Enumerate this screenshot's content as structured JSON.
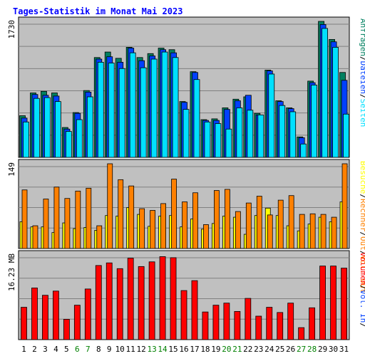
{
  "title": "Tages-Statistik im Monat Mai 2023",
  "colors": {
    "panel_bg": "#c0c0c0",
    "gridline": "#808080",
    "anfragen": "#008060",
    "dateien": "#0040ff",
    "seiten": "#00e0ff",
    "besuche": "#ffff00",
    "rechner": "#ff8000",
    "volumen": "#ff0000",
    "weekday": "#000000",
    "weekend": "#008000",
    "title": "#0000ff"
  },
  "chart_data": [
    {
      "type": "bar",
      "name": "top",
      "ymax_label": "1730",
      "ymax": 1730,
      "legend": [
        {
          "text": "Anfragen",
          "color": "#008060"
        },
        {
          "text": "/",
          "color": "#000000"
        },
        {
          "text": "Dateien",
          "color": "#0040ff"
        },
        {
          "text": "/",
          "color": "#000000"
        },
        {
          "text": "Seiten",
          "color": "#00e0ff"
        }
      ],
      "categories": [
        "1",
        "2",
        "3",
        "4",
        "5",
        "6",
        "7",
        "8",
        "9",
        "10",
        "11",
        "12",
        "13",
        "14",
        "15",
        "16",
        "17",
        "18",
        "19",
        "20",
        "21",
        "22",
        "23",
        "24",
        "25",
        "26",
        "27",
        "28",
        "29",
        "30",
        "31"
      ],
      "series": [
        {
          "name": "Anfragen",
          "values": [
            530,
            820,
            840,
            820,
            380,
            570,
            850,
            1270,
            1340,
            1260,
            1400,
            1270,
            1320,
            1390,
            1370,
            710,
            1090,
            480,
            490,
            630,
            740,
            770,
            560,
            1110,
            720,
            630,
            260,
            970,
            1730,
            1500,
            1080
          ]
        },
        {
          "name": "Dateien",
          "values": [
            500,
            800,
            790,
            780,
            360,
            560,
            830,
            1250,
            1280,
            1210,
            1390,
            1230,
            1290,
            1370,
            1330,
            700,
            1080,
            470,
            470,
            610,
            720,
            790,
            540,
            1100,
            710,
            620,
            250,
            950,
            1690,
            1470,
            980
          ]
        },
        {
          "name": "Seiten",
          "values": [
            450,
            750,
            760,
            710,
            330,
            480,
            770,
            1210,
            1200,
            1130,
            1330,
            1140,
            1250,
            1340,
            1270,
            610,
            990,
            450,
            430,
            360,
            630,
            600,
            540,
            1060,
            660,
            580,
            170,
            920,
            1640,
            1400,
            550
          ]
        }
      ]
    },
    {
      "type": "bar",
      "name": "middle",
      "ymax_label": "149",
      "ymax": 149,
      "legend": [
        {
          "text": "Besuche",
          "color": "#ffff00"
        },
        {
          "text": "/",
          "color": "#000000"
        },
        {
          "text": "Rechner",
          "color": "#ff8000"
        },
        {
          "text": "/",
          "color": "#000000"
        },
        {
          "text": "Out",
          "color": "#ff8000"
        },
        {
          "text": "/",
          "color": "#000000"
        },
        {
          "text": "Vol.",
          "color": "#ff8000"
        },
        {
          "text": "Out",
          "color": "#ff8000"
        }
      ],
      "categories": [
        "1",
        "2",
        "3",
        "4",
        "5",
        "6",
        "7",
        "8",
        "9",
        "10",
        "11",
        "12",
        "13",
        "14",
        "15",
        "16",
        "17",
        "18",
        "19",
        "20",
        "21",
        "22",
        "23",
        "24",
        "25",
        "26",
        "27",
        "28",
        "29",
        "30",
        "31"
      ],
      "series": [
        {
          "name": "Besuche",
          "values": [
            47,
            38,
            38,
            28,
            45,
            35,
            37,
            32,
            58,
            57,
            72,
            60,
            39,
            57,
            58,
            38,
            52,
            34,
            44,
            57,
            55,
            25,
            58,
            71,
            58,
            40,
            31,
            43,
            55,
            47,
            82
          ]
        },
        {
          "name": "Rechner",
          "values": [
            103,
            40,
            87,
            108,
            88,
            101,
            106,
            40,
            149,
            121,
            110,
            70,
            67,
            79,
            122,
            82,
            98,
            42,
            102,
            104,
            65,
            80,
            92,
            59,
            85,
            93,
            60,
            61,
            60,
            55,
            149
          ]
        }
      ]
    },
    {
      "type": "bar",
      "name": "bottom",
      "ymax_label": "16.23 MB",
      "ymax": 16.23,
      "legend": [
        {
          "text": "Volumen",
          "color": "#ff0000"
        },
        {
          "text": "/",
          "color": "#000000"
        },
        {
          "text": "Vol.",
          "color": "#0040ff"
        },
        {
          "text": "In",
          "color": "#0040ff"
        },
        {
          "text": "/",
          "color": "#000000"
        }
      ],
      "categories": [
        "1",
        "2",
        "3",
        "4",
        "5",
        "6",
        "7",
        "8",
        "9",
        "10",
        "11",
        "12",
        "13",
        "14",
        "15",
        "16",
        "17",
        "18",
        "19",
        "20",
        "21",
        "22",
        "23",
        "24",
        "25",
        "26",
        "27",
        "28",
        "29",
        "30",
        "31"
      ],
      "series": [
        {
          "name": "Volumen",
          "values": [
            6.2,
            9.9,
            8.5,
            9.3,
            3.9,
            6.6,
            9.7,
            14.2,
            14.7,
            13.6,
            15.6,
            14.0,
            14.9,
            15.9,
            15.7,
            9.4,
            11.3,
            5.3,
            6.6,
            7.0,
            5.4,
            7.9,
            4.5,
            6.2,
            5.2,
            7.0,
            2.3,
            6.1,
            14.1,
            14.1,
            13.7
          ]
        }
      ]
    }
  ],
  "x_tick_colors": [
    "weekday",
    "weekday",
    "weekday",
    "weekday",
    "weekday",
    "weekend",
    "weekend",
    "weekday",
    "weekday",
    "weekday",
    "weekday",
    "weekday",
    "weekend",
    "weekend",
    "weekday",
    "weekday",
    "weekday",
    "weekday",
    "weekday",
    "weekend",
    "weekend",
    "weekday",
    "weekday",
    "weekday",
    "weekday",
    "weekday",
    "weekend",
    "weekend",
    "weekday",
    "weekday",
    "weekday"
  ]
}
